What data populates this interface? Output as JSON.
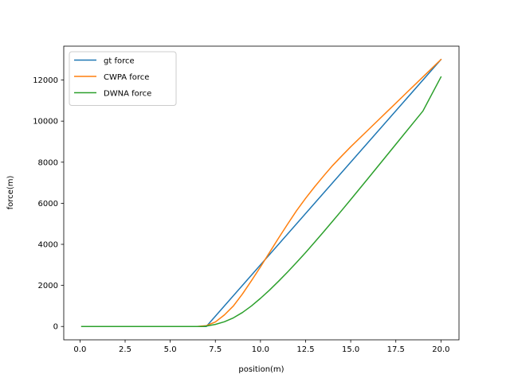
{
  "chart_data": {
    "type": "line",
    "title": "",
    "xlabel": "position(m)",
    "ylabel": "force(m)",
    "xlim": [
      -0.9,
      21.0
    ],
    "ylim": [
      -650,
      13650
    ],
    "xticks": [
      0.0,
      2.5,
      5.0,
      7.5,
      10.0,
      12.5,
      15.0,
      17.5,
      20.0
    ],
    "xtick_labels": [
      "0.0",
      "2.5",
      "5.0",
      "7.5",
      "10.0",
      "12.5",
      "15.0",
      "17.5",
      "20.0"
    ],
    "yticks": [
      0,
      2000,
      4000,
      6000,
      8000,
      10000,
      12000
    ],
    "ytick_labels": [
      "0",
      "2000",
      "4000",
      "6000",
      "8000",
      "10000",
      "12000"
    ],
    "grid": false,
    "legend": {
      "position": "upper-left"
    },
    "series": [
      {
        "name": "gt force",
        "color": "#1f77b4",
        "x": [
          0.1,
          7.0,
          20.0
        ],
        "y": [
          0,
          0,
          13000
        ]
      },
      {
        "name": "CWPA force",
        "color": "#ff7f0e",
        "x": [
          0.1,
          6.5,
          7.0,
          7.5,
          8.0,
          8.5,
          9.0,
          9.5,
          10.0,
          10.5,
          11.0,
          11.5,
          12.0,
          12.5,
          13.0,
          13.5,
          14.0,
          14.5,
          15.0,
          16.0,
          17.0,
          18.0,
          19.0,
          20.0
        ],
        "y": [
          0,
          0,
          40,
          220,
          560,
          1000,
          1580,
          2230,
          2900,
          3600,
          4300,
          4980,
          5640,
          6240,
          6800,
          7330,
          7840,
          8300,
          8750,
          9600,
          10450,
          11300,
          12150,
          13000
        ]
      },
      {
        "name": "DWNA force",
        "color": "#2ca02c",
        "x": [
          0.1,
          6.8,
          7.0,
          7.5,
          8.0,
          8.5,
          9.0,
          9.5,
          10.0,
          10.5,
          11.0,
          11.5,
          12.0,
          12.5,
          13.0,
          13.5,
          14.0,
          14.5,
          15.0,
          16.0,
          17.0,
          18.0,
          19.0,
          20.0
        ],
        "y": [
          0,
          0,
          20,
          100,
          230,
          420,
          680,
          1000,
          1370,
          1770,
          2200,
          2650,
          3120,
          3600,
          4100,
          4610,
          5130,
          5650,
          6180,
          7250,
          8330,
          9410,
          10490,
          12150
        ]
      }
    ]
  }
}
